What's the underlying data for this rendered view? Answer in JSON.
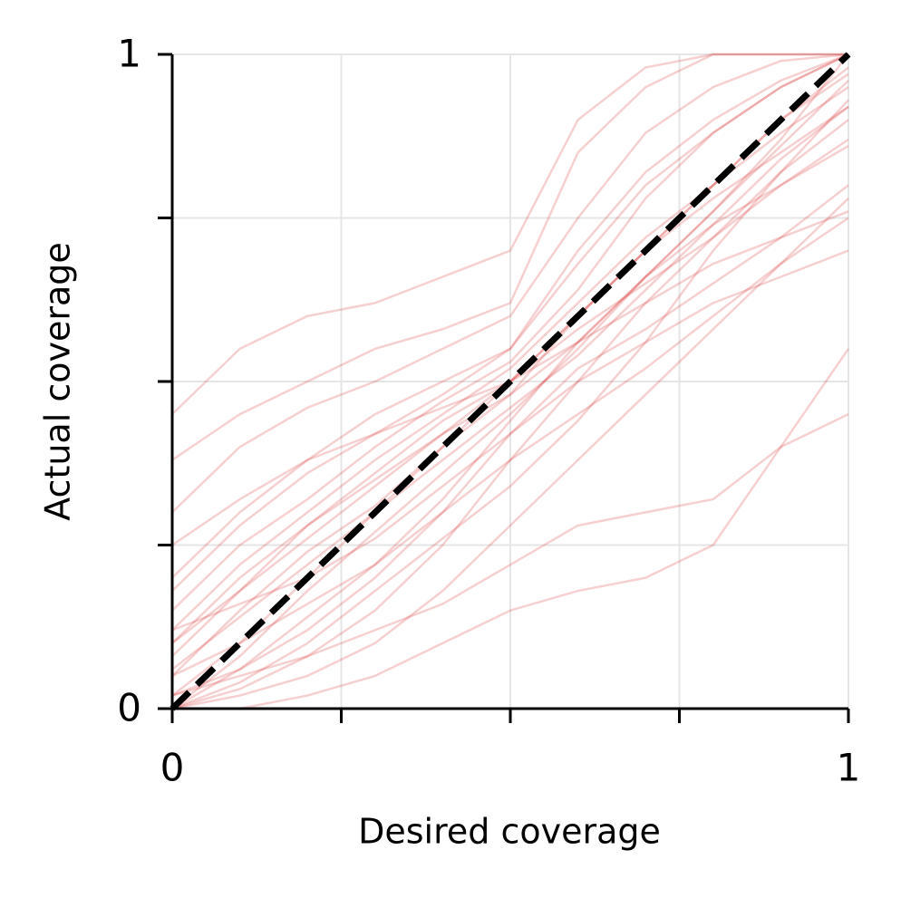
{
  "chart_data": {
    "type": "line",
    "xlabel": "Desired coverage",
    "ylabel": "Actual coverage",
    "x": [
      0,
      0.1,
      0.2,
      0.3,
      0.4,
      0.5,
      0.6,
      0.7,
      0.8,
      0.9,
      1
    ],
    "xlim": [
      0,
      1
    ],
    "ylim": [
      0,
      1
    ],
    "xticks": [
      0,
      0.25,
      0.5,
      0.75,
      1
    ],
    "xtick_labels": [
      0,
      null,
      null,
      null,
      1
    ],
    "yticks": [
      0,
      0.25,
      0.5,
      0.75,
      1
    ],
    "ytick_labels": [
      0,
      null,
      null,
      null,
      1
    ],
    "grid": true,
    "alpha": 0.22,
    "reference_line": {
      "x": [
        0,
        1
      ],
      "y": [
        0,
        1
      ],
      "color": "#000000",
      "dashed": true
    },
    "series": [
      {
        "color": "#d62728",
        "values": [
          0,
          0.08,
          0.18,
          0.27,
          0.36,
          0.45,
          0.55,
          0.66,
          0.76,
          0.87,
          1
        ]
      },
      {
        "color": "#d62728",
        "values": [
          0.05,
          0.15,
          0.24,
          0.31,
          0.4,
          0.48,
          0.6,
          0.7,
          0.8,
          0.9,
          0.98
        ]
      },
      {
        "color": "#d62728",
        "values": [
          0.12,
          0.22,
          0.3,
          0.38,
          0.45,
          0.52,
          0.62,
          0.72,
          0.8,
          0.88,
          0.95
        ]
      },
      {
        "color": "#d62728",
        "values": [
          0,
          0.03,
          0.08,
          0.15,
          0.25,
          0.38,
          0.5,
          0.62,
          0.72,
          0.82,
          0.9
        ]
      },
      {
        "color": "#d62728",
        "values": [
          0.2,
          0.3,
          0.38,
          0.45,
          0.5,
          0.55,
          0.68,
          0.8,
          0.88,
          0.95,
          1
        ]
      },
      {
        "color": "#d62728",
        "values": [
          0.02,
          0.06,
          0.12,
          0.2,
          0.3,
          0.42,
          0.52,
          0.58,
          0.65,
          0.72,
          0.8
        ]
      },
      {
        "color": "#d62728",
        "values": [
          0.1,
          0.2,
          0.28,
          0.35,
          0.42,
          0.5,
          0.58,
          0.65,
          0.72,
          0.8,
          0.87
        ]
      },
      {
        "color": "#d62728",
        "values": [
          0.3,
          0.4,
          0.46,
          0.5,
          0.55,
          0.6,
          0.75,
          0.88,
          0.95,
          0.99,
          1
        ]
      },
      {
        "color": "#d62728",
        "values": [
          0,
          0.02,
          0.05,
          0.1,
          0.18,
          0.28,
          0.38,
          0.48,
          0.58,
          0.68,
          0.78
        ]
      },
      {
        "color": "#d62728",
        "values": [
          0.15,
          0.25,
          0.32,
          0.4,
          0.47,
          0.53,
          0.64,
          0.78,
          0.88,
          0.95,
          1
        ]
      },
      {
        "color": "#d62728",
        "values": [
          0.05,
          0.1,
          0.16,
          0.22,
          0.3,
          0.38,
          0.45,
          0.52,
          0.6,
          0.68,
          0.75
        ]
      },
      {
        "color": "#d62728",
        "values": [
          0.38,
          0.45,
          0.5,
          0.55,
          0.58,
          0.62,
          0.85,
          0.95,
          1,
          1,
          1
        ]
      },
      {
        "color": "#d62728",
        "values": [
          0,
          0,
          0.02,
          0.05,
          0.1,
          0.15,
          0.18,
          0.2,
          0.25,
          0.4,
          0.55
        ]
      },
      {
        "color": "#d62728",
        "values": [
          0.08,
          0.18,
          0.28,
          0.36,
          0.44,
          0.5,
          0.56,
          0.62,
          0.68,
          0.72,
          0.76
        ]
      },
      {
        "color": "#d62728",
        "values": [
          0.02,
          0.1,
          0.2,
          0.3,
          0.4,
          0.5,
          0.6,
          0.7,
          0.8,
          0.9,
          0.97
        ]
      },
      {
        "color": "#d62728",
        "values": [
          0.25,
          0.32,
          0.38,
          0.42,
          0.46,
          0.5,
          0.6,
          0.7,
          0.78,
          0.85,
          0.92
        ]
      },
      {
        "color": "#d62728",
        "values": [
          0,
          0.04,
          0.1,
          0.18,
          0.26,
          0.34,
          0.44,
          0.56,
          0.7,
          0.82,
          0.93
        ]
      },
      {
        "color": "#d62728",
        "values": [
          0.12,
          0.16,
          0.2,
          0.26,
          0.34,
          0.42,
          0.5,
          0.56,
          0.62,
          0.66,
          0.7
        ]
      },
      {
        "color": "#d62728",
        "values": [
          0.45,
          0.55,
          0.6,
          0.62,
          0.66,
          0.7,
          0.9,
          0.98,
          1,
          1,
          1
        ]
      },
      {
        "color": "#d62728",
        "values": [
          0.02,
          0.05,
          0.08,
          0.12,
          0.16,
          0.22,
          0.28,
          0.3,
          0.32,
          0.4,
          0.45
        ]
      },
      {
        "color": "#d62728",
        "values": [
          0.18,
          0.28,
          0.36,
          0.42,
          0.48,
          0.55,
          0.7,
          0.82,
          0.9,
          0.96,
          1
        ]
      },
      {
        "color": "#d62728",
        "values": [
          0.06,
          0.14,
          0.22,
          0.3,
          0.38,
          0.46,
          0.54,
          0.64,
          0.74,
          0.84,
          0.92
        ]
      },
      {
        "color": "#d62728",
        "values": [
          0,
          0.06,
          0.14,
          0.22,
          0.32,
          0.44,
          0.56,
          0.66,
          0.74,
          0.8,
          0.86
        ]
      },
      {
        "color": "#d62728",
        "values": [
          0.1,
          0.18,
          0.26,
          0.34,
          0.42,
          0.48,
          0.56,
          0.66,
          0.76,
          0.86,
          0.96
        ]
      }
    ]
  }
}
